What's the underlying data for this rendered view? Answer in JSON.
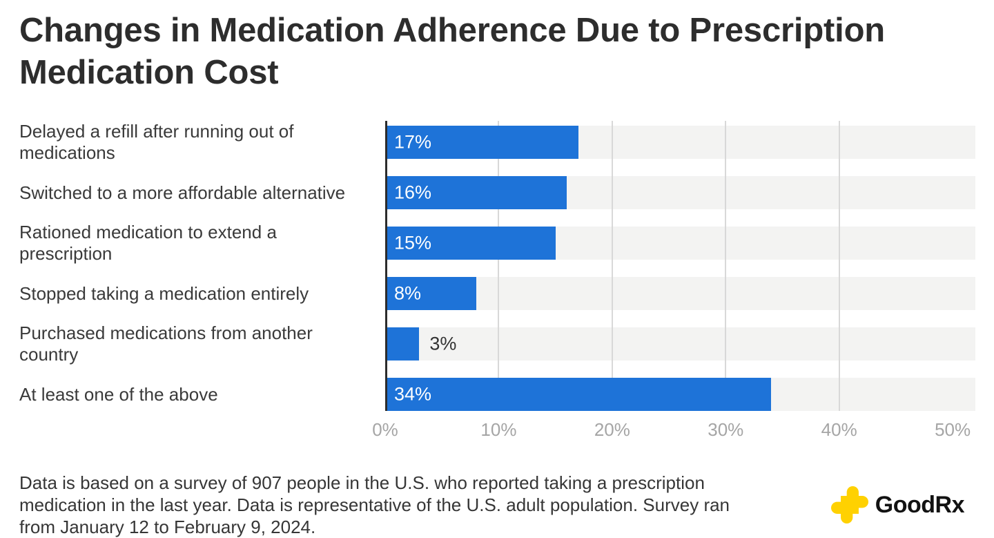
{
  "title": "Changes in Medication Adherence Due to Prescription Medication Cost",
  "chart_data": {
    "type": "bar",
    "orientation": "horizontal",
    "title": "Changes in Medication Adherence Due to Prescription Medication Cost",
    "categories": [
      "Delayed a refill after running out of medications",
      "Switched to a more affordable alternative",
      "Rationed medication to extend a prescription",
      "Stopped taking a medication entirely",
      "Purchased medications from another country",
      "At least one of the above"
    ],
    "values": [
      17,
      16,
      15,
      8,
      3,
      34
    ],
    "value_labels": [
      "17%",
      "16%",
      "15%",
      "8%",
      "3%",
      "34%"
    ],
    "xlabel": "",
    "ylabel": "",
    "xlim": [
      0,
      52
    ],
    "x_ticks": [
      {
        "value": 0,
        "label": "0%"
      },
      {
        "value": 10,
        "label": "10%"
      },
      {
        "value": 20,
        "label": "20%"
      },
      {
        "value": 30,
        "label": "30%"
      },
      {
        "value": 40,
        "label": "40%"
      },
      {
        "value": 50,
        "label": "50%"
      }
    ],
    "gridlines": [
      10,
      20,
      30,
      40
    ],
    "grid": true,
    "legend": false,
    "inside_label_min": 5,
    "colors": {
      "bar": "#1e73d8",
      "track": "#f3f3f2",
      "gridline": "#d8d8d8",
      "axis_line": "#2c2c2c",
      "tick_label": "#a5a5a5",
      "value_label_inside": "#ffffff",
      "value_label_outside": "#333333"
    }
  },
  "footnote_lines": [
    "Data is based on a survey of 907 people in the U.S. who reported taking a prescription",
    "medication in the last year. Data is representative of the U.S. adult population. Survey ran",
    "from January 12 to February 9, 2024."
  ],
  "logo": {
    "brand": "GoodRx",
    "cross_color": "#ffd101"
  }
}
